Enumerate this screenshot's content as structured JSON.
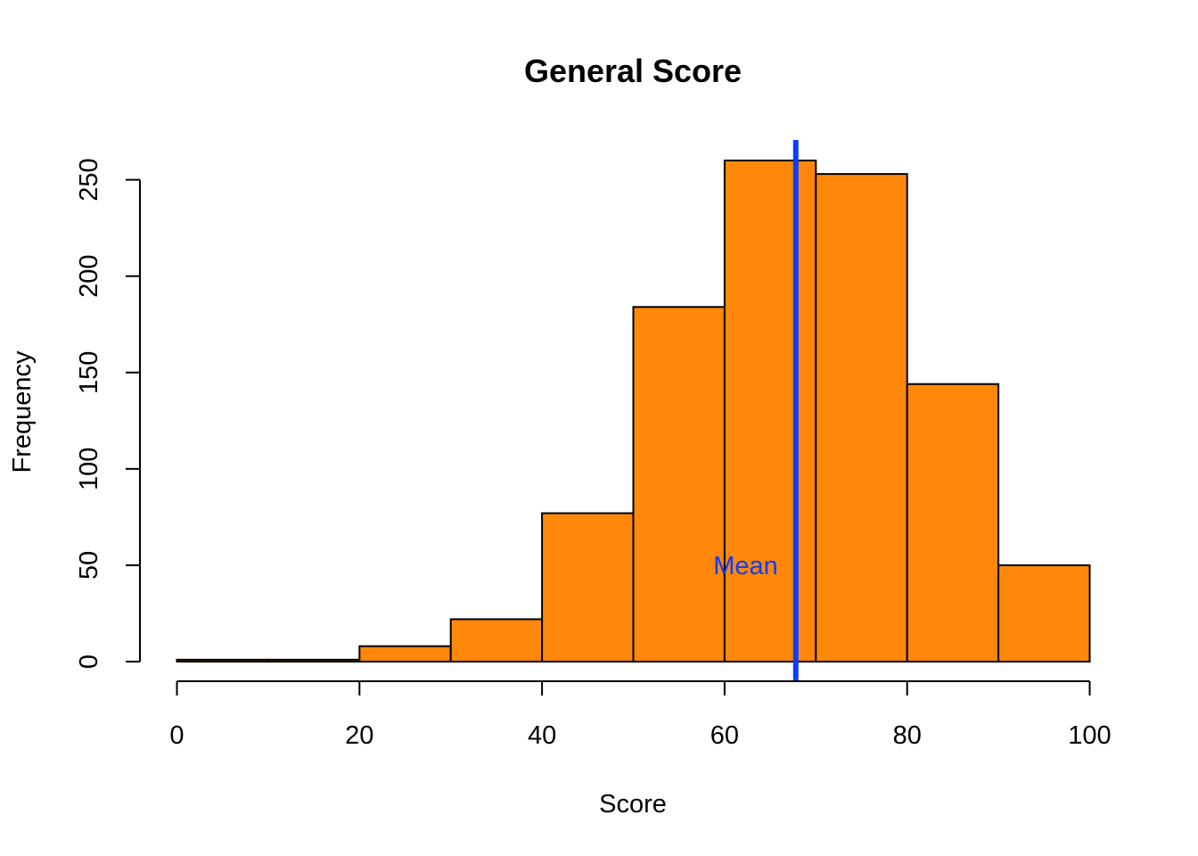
{
  "chart_data": {
    "type": "bar",
    "title": "General Score",
    "xlabel": "Score",
    "ylabel": "Frequency",
    "bins": [
      {
        "start": 0,
        "end": 10,
        "count": 1
      },
      {
        "start": 10,
        "end": 20,
        "count": 1
      },
      {
        "start": 20,
        "end": 30,
        "count": 8
      },
      {
        "start": 30,
        "end": 40,
        "count": 22
      },
      {
        "start": 40,
        "end": 50,
        "count": 77
      },
      {
        "start": 50,
        "end": 60,
        "count": 184
      },
      {
        "start": 60,
        "end": 70,
        "count": 260
      },
      {
        "start": 70,
        "end": 80,
        "count": 253
      },
      {
        "start": 80,
        "end": 90,
        "count": 144
      },
      {
        "start": 90,
        "end": 100,
        "count": 50
      }
    ],
    "xlim": [
      0,
      100
    ],
    "ylim": [
      0,
      260
    ],
    "x_ticks": [
      0,
      20,
      40,
      60,
      80,
      100
    ],
    "x_tick_labels": [
      "0",
      "20",
      "40",
      "60",
      "80",
      "100"
    ],
    "y_ticks": [
      0,
      50,
      100,
      150,
      200,
      250
    ],
    "y_tick_labels": [
      "0",
      "50",
      "100",
      "150",
      "200",
      "250"
    ],
    "bar_color": "#FF880B",
    "grid": false,
    "annotations": [
      {
        "type": "vline",
        "x": 67.8,
        "color": "#0A3DFF",
        "label": "Mean",
        "label_y": 50
      }
    ]
  }
}
